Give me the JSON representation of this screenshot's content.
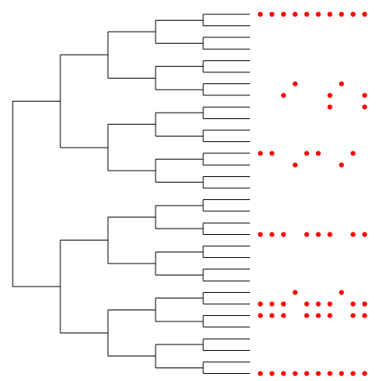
{
  "chart_data": {
    "type": "dendrogram-with-dot-matrix",
    "leaf_count": 32,
    "tree": [
      [
        [
          [
            [
              0,
              1
            ],
            [
              2,
              3
            ]
          ],
          [
            [
              4,
              5
            ],
            [
              6,
              7
            ]
          ]
        ],
        [
          [
            [
              8,
              9
            ],
            [
              10,
              11
            ]
          ],
          [
            [
              12,
              13
            ],
            [
              14,
              15
            ]
          ]
        ]
      ],
      [
        [
          [
            [
              16,
              17
            ],
            [
              18,
              19
            ]
          ],
          [
            [
              20,
              21
            ],
            [
              22,
              23
            ]
          ]
        ],
        [
          [
            [
              24,
              25
            ],
            [
              26,
              27
            ]
          ],
          [
            [
              28,
              29
            ],
            [
              30,
              31
            ]
          ]
        ]
      ]
    ],
    "dot_columns": 10,
    "dot_matrix": [
      [
        1,
        1,
        1,
        1,
        1,
        1,
        1,
        1,
        1,
        1
      ],
      [
        0,
        0,
        0,
        0,
        0,
        0,
        0,
        0,
        0,
        0
      ],
      [
        0,
        0,
        0,
        0,
        0,
        0,
        0,
        0,
        0,
        0
      ],
      [
        0,
        0,
        0,
        0,
        0,
        0,
        0,
        0,
        0,
        0
      ],
      [
        0,
        0,
        0,
        0,
        0,
        0,
        0,
        0,
        0,
        0
      ],
      [
        0,
        0,
        0,
        0,
        0,
        0,
        0,
        0,
        0,
        0
      ],
      [
        0,
        0,
        0,
        1,
        0,
        0,
        0,
        1,
        0,
        0
      ],
      [
        0,
        0,
        1,
        0,
        0,
        0,
        1,
        0,
        0,
        1
      ],
      [
        0,
        0,
        0,
        0,
        0,
        0,
        1,
        0,
        0,
        1
      ],
      [
        0,
        0,
        0,
        0,
        0,
        0,
        0,
        0,
        0,
        0
      ],
      [
        0,
        0,
        0,
        0,
        0,
        0,
        0,
        0,
        0,
        0
      ],
      [
        0,
        0,
        0,
        0,
        0,
        0,
        0,
        0,
        0,
        0
      ],
      [
        1,
        1,
        0,
        0,
        1,
        1,
        0,
        0,
        1,
        0
      ],
      [
        0,
        0,
        0,
        1,
        0,
        0,
        0,
        1,
        0,
        0
      ],
      [
        0,
        0,
        0,
        0,
        0,
        0,
        0,
        0,
        0,
        0
      ],
      [
        0,
        0,
        0,
        0,
        0,
        0,
        0,
        0,
        0,
        0
      ],
      [
        0,
        0,
        0,
        0,
        0,
        0,
        0,
        0,
        0,
        0
      ],
      [
        0,
        0,
        0,
        0,
        0,
        0,
        0,
        0,
        0,
        0
      ],
      [
        0,
        0,
        0,
        0,
        0,
        0,
        0,
        0,
        0,
        0
      ],
      [
        1,
        1,
        1,
        0,
        1,
        1,
        1,
        0,
        1,
        1
      ],
      [
        0,
        0,
        0,
        0,
        0,
        0,
        0,
        0,
        0,
        0
      ],
      [
        0,
        0,
        0,
        0,
        0,
        0,
        0,
        0,
        0,
        0
      ],
      [
        0,
        0,
        0,
        0,
        0,
        0,
        0,
        0,
        0,
        0
      ],
      [
        0,
        0,
        0,
        0,
        0,
        0,
        0,
        0,
        0,
        0
      ],
      [
        0,
        0,
        0,
        1,
        0,
        0,
        0,
        1,
        0,
        0
      ],
      [
        1,
        1,
        1,
        0,
        1,
        1,
        1,
        0,
        1,
        1
      ],
      [
        1,
        1,
        1,
        0,
        1,
        1,
        1,
        0,
        1,
        1
      ],
      [
        0,
        0,
        0,
        0,
        0,
        0,
        0,
        0,
        0,
        0
      ],
      [
        0,
        0,
        0,
        0,
        0,
        0,
        0,
        0,
        0,
        0
      ],
      [
        0,
        0,
        0,
        0,
        0,
        0,
        0,
        0,
        0,
        0
      ],
      [
        0,
        0,
        0,
        0,
        0,
        0,
        0,
        0,
        0,
        0
      ],
      [
        1,
        1,
        1,
        1,
        1,
        1,
        1,
        1,
        1,
        1
      ]
    ],
    "colors": {
      "branch": "#000000",
      "dot": "#ff0000",
      "background": "#ffffff"
    }
  }
}
